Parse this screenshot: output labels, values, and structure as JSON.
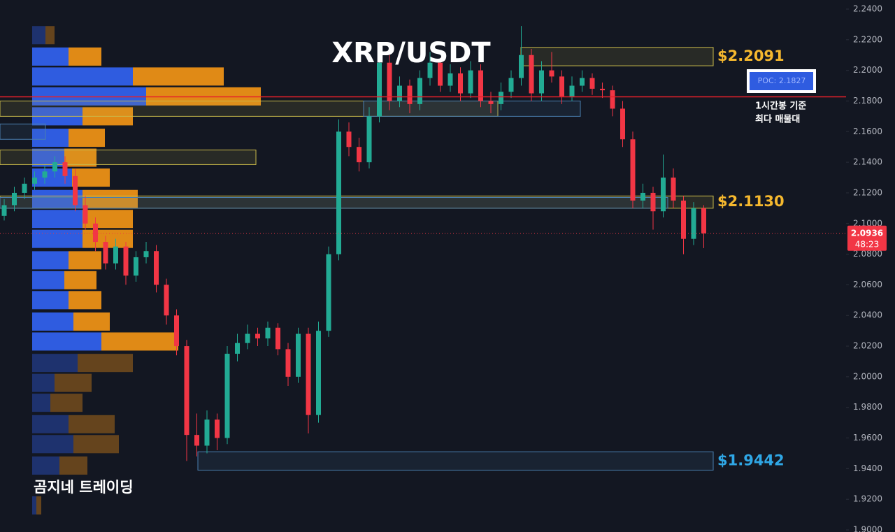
{
  "chart_data": {
    "type": "candlestick",
    "title": "XRP/USDT",
    "watermark": "곰지네 트레이딩",
    "ylim": [
      1.9,
      2.24
    ],
    "yticks": [
      {
        "value": 2.24,
        "label": "2.2400"
      },
      {
        "value": 2.22,
        "label": "2.2200"
      },
      {
        "value": 2.2,
        "label": "2.2000"
      },
      {
        "value": 2.18,
        "label": "2.1800"
      },
      {
        "value": 2.16,
        "label": "2.1600"
      },
      {
        "value": 2.14,
        "label": "2.1400"
      },
      {
        "value": 2.12,
        "label": "2.1200"
      },
      {
        "value": 2.1,
        "label": "2.1000"
      },
      {
        "value": 2.08,
        "label": "2.0800"
      },
      {
        "value": 2.06,
        "label": "2.0600"
      },
      {
        "value": 2.04,
        "label": "2.0400"
      },
      {
        "value": 2.02,
        "label": "2.0200"
      },
      {
        "value": 2,
        "label": "2.0000"
      },
      {
        "value": 1.98,
        "label": "1.9800"
      },
      {
        "value": 1.96,
        "label": "1.9600"
      },
      {
        "value": 1.94,
        "label": "1.9400"
      },
      {
        "value": 1.92,
        "label": "1.9200"
      },
      {
        "value": 1.9,
        "label": "1.9000"
      }
    ],
    "up_color": "#22ab94",
    "down_color": "#f23645",
    "ohlc": [
      [
        2.105,
        2.116,
        2.102,
        2.112
      ],
      [
        2.112,
        2.124,
        2.108,
        2.12
      ],
      [
        2.12,
        2.13,
        2.116,
        2.126
      ],
      [
        2.126,
        2.134,
        2.122,
        2.13
      ],
      [
        2.13,
        2.138,
        2.126,
        2.134
      ],
      [
        2.134,
        2.144,
        2.13,
        2.14
      ],
      [
        2.14,
        2.144,
        2.126,
        2.131
      ],
      [
        2.131,
        2.136,
        2.108,
        2.112
      ],
      [
        2.112,
        2.118,
        2.096,
        2.1
      ],
      [
        2.1,
        2.104,
        2.082,
        2.088
      ],
      [
        2.088,
        2.092,
        2.07,
        2.074
      ],
      [
        2.074,
        2.09,
        2.07,
        2.085
      ],
      [
        2.085,
        2.088,
        2.06,
        2.066
      ],
      [
        2.066,
        2.082,
        2.062,
        2.078
      ],
      [
        2.078,
        2.088,
        2.074,
        2.082
      ],
      [
        2.082,
        2.086,
        2.055,
        2.06
      ],
      [
        2.06,
        2.064,
        2.034,
        2.04
      ],
      [
        2.04,
        2.044,
        2.014,
        2.02
      ],
      [
        2.02,
        2.024,
        1.945,
        1.962
      ],
      [
        1.962,
        1.976,
        1.948,
        1.955
      ],
      [
        1.955,
        1.978,
        1.95,
        1.972
      ],
      [
        1.972,
        1.976,
        1.952,
        1.96
      ],
      [
        1.96,
        2.02,
        1.956,
        2.015
      ],
      [
        2.015,
        2.028,
        2.01,
        2.022
      ],
      [
        2.022,
        2.034,
        2.018,
        2.028
      ],
      [
        2.028,
        2.032,
        2.02,
        2.025
      ],
      [
        2.025,
        2.036,
        2.02,
        2.032
      ],
      [
        2.032,
        2.035,
        2.014,
        2.018
      ],
      [
        2.018,
        2.022,
        1.994,
        2
      ],
      [
        2,
        2.032,
        1.996,
        2.028
      ],
      [
        2.028,
        2.032,
        1.963,
        1.975
      ],
      [
        1.975,
        2.036,
        1.97,
        2.03
      ],
      [
        2.03,
        2.085,
        2.026,
        2.08
      ],
      [
        2.08,
        2.168,
        2.076,
        2.16
      ],
      [
        2.16,
        2.166,
        2.144,
        2.15
      ],
      [
        2.15,
        2.156,
        2.134,
        2.14
      ],
      [
        2.14,
        2.176,
        2.136,
        2.17
      ],
      [
        2.17,
        2.21,
        2.166,
        2.205
      ],
      [
        2.205,
        2.21,
        2.174,
        2.18
      ],
      [
        2.18,
        2.196,
        2.176,
        2.19
      ],
      [
        2.19,
        2.194,
        2.172,
        2.178
      ],
      [
        2.178,
        2.2,
        2.174,
        2.195
      ],
      [
        2.195,
        2.212,
        2.19,
        2.205
      ],
      [
        2.205,
        2.208,
        2.186,
        2.19
      ],
      [
        2.19,
        2.204,
        2.186,
        2.198
      ],
      [
        2.198,
        2.202,
        2.18,
        2.185
      ],
      [
        2.185,
        2.206,
        2.182,
        2.2
      ],
      [
        2.2,
        2.204,
        2.176,
        2.18
      ],
      [
        2.18,
        2.186,
        2.172,
        2.178
      ],
      [
        2.178,
        2.192,
        2.174,
        2.186
      ],
      [
        2.186,
        2.2,
        2.182,
        2.195
      ],
      [
        2.195,
        2.229,
        2.19,
        2.21
      ],
      [
        2.21,
        2.214,
        2.18,
        2.185
      ],
      [
        2.185,
        2.206,
        2.18,
        2.2
      ],
      [
        2.2,
        2.212,
        2.192,
        2.196
      ],
      [
        2.196,
        2.2,
        2.178,
        2.183
      ],
      [
        2.183,
        2.196,
        2.18,
        2.19
      ],
      [
        2.19,
        2.2,
        2.186,
        2.195
      ],
      [
        2.195,
        2.198,
        2.184,
        2.188
      ],
      [
        2.188,
        2.192,
        2.182,
        2.187
      ],
      [
        2.187,
        2.19,
        2.17,
        2.175
      ],
      [
        2.175,
        2.18,
        2.15,
        2.155
      ],
      [
        2.155,
        2.16,
        2.11,
        2.115
      ],
      [
        2.115,
        2.126,
        2.11,
        2.12
      ],
      [
        2.12,
        2.124,
        2.096,
        2.108
      ],
      [
        2.108,
        2.145,
        2.104,
        2.13
      ],
      [
        2.13,
        2.136,
        2.11,
        2.115
      ],
      [
        2.115,
        2.118,
        2.08,
        2.09
      ],
      [
        2.09,
        2.114,
        2.086,
        2.11
      ],
      [
        2.11,
        2.112,
        2.084,
        2.0936
      ]
    ],
    "volume_profile": {
      "buy_color": "#2f5ce0",
      "sell_color": "#e08a16",
      "value_area": [
        2.016,
        2.216
      ],
      "prices": [
        2.223,
        2.209,
        2.196,
        2.183,
        2.17,
        2.156,
        2.143,
        2.13,
        2.116,
        2.103,
        2.09,
        2.076,
        2.063,
        2.05,
        2.036,
        2.023,
        2.009,
        1.996,
        1.983,
        1.969,
        1.956,
        1.942,
        1.916
      ],
      "buy": [
        19,
        52,
        144,
        163,
        72,
        52,
        46,
        57,
        72,
        72,
        72,
        52,
        46,
        52,
        59,
        99,
        65,
        32,
        26,
        52,
        59,
        39,
        6
      ],
      "sell": [
        13,
        47,
        130,
        164,
        72,
        52,
        46,
        54,
        79,
        72,
        72,
        47,
        46,
        47,
        52,
        110,
        79,
        53,
        46,
        66,
        65,
        40,
        7
      ]
    },
    "zones": [
      {
        "low": 2.203,
        "high": 2.215,
        "color": "#c9b94a",
        "label": "$2.2091",
        "label_color": "#f5b82e"
      },
      {
        "low": 2.17,
        "high": 2.18,
        "color": "#c9b94a"
      },
      {
        "low": 2.17,
        "high": 2.18,
        "color": "#4a7fb0"
      },
      {
        "low": 2.1385,
        "high": 2.148,
        "color": "#c9b94a"
      },
      {
        "low": 2.155,
        "high": 2.165,
        "color": "#4a7fb0"
      },
      {
        "low": 2.11,
        "high": 2.118,
        "color": "#c9b94a",
        "label": "$2.1130",
        "label_color": "#f5b82e"
      },
      {
        "low": 2.11,
        "high": 2.117,
        "color": "#4a7fb0"
      },
      {
        "low": 1.939,
        "high": 1.951,
        "color": "#4a7fb0",
        "label": "$1.9442",
        "label_color": "#2fa7e6"
      }
    ],
    "poc": {
      "value": 2.1827,
      "label": "POC: 2.1827",
      "note": [
        "1시간봉 기준",
        "최다 매물대"
      ],
      "color": "#e5202a"
    },
    "last_price": {
      "value": 2.0936,
      "label": "2.0936",
      "countdown": "48:23",
      "color": "#f23645"
    }
  }
}
